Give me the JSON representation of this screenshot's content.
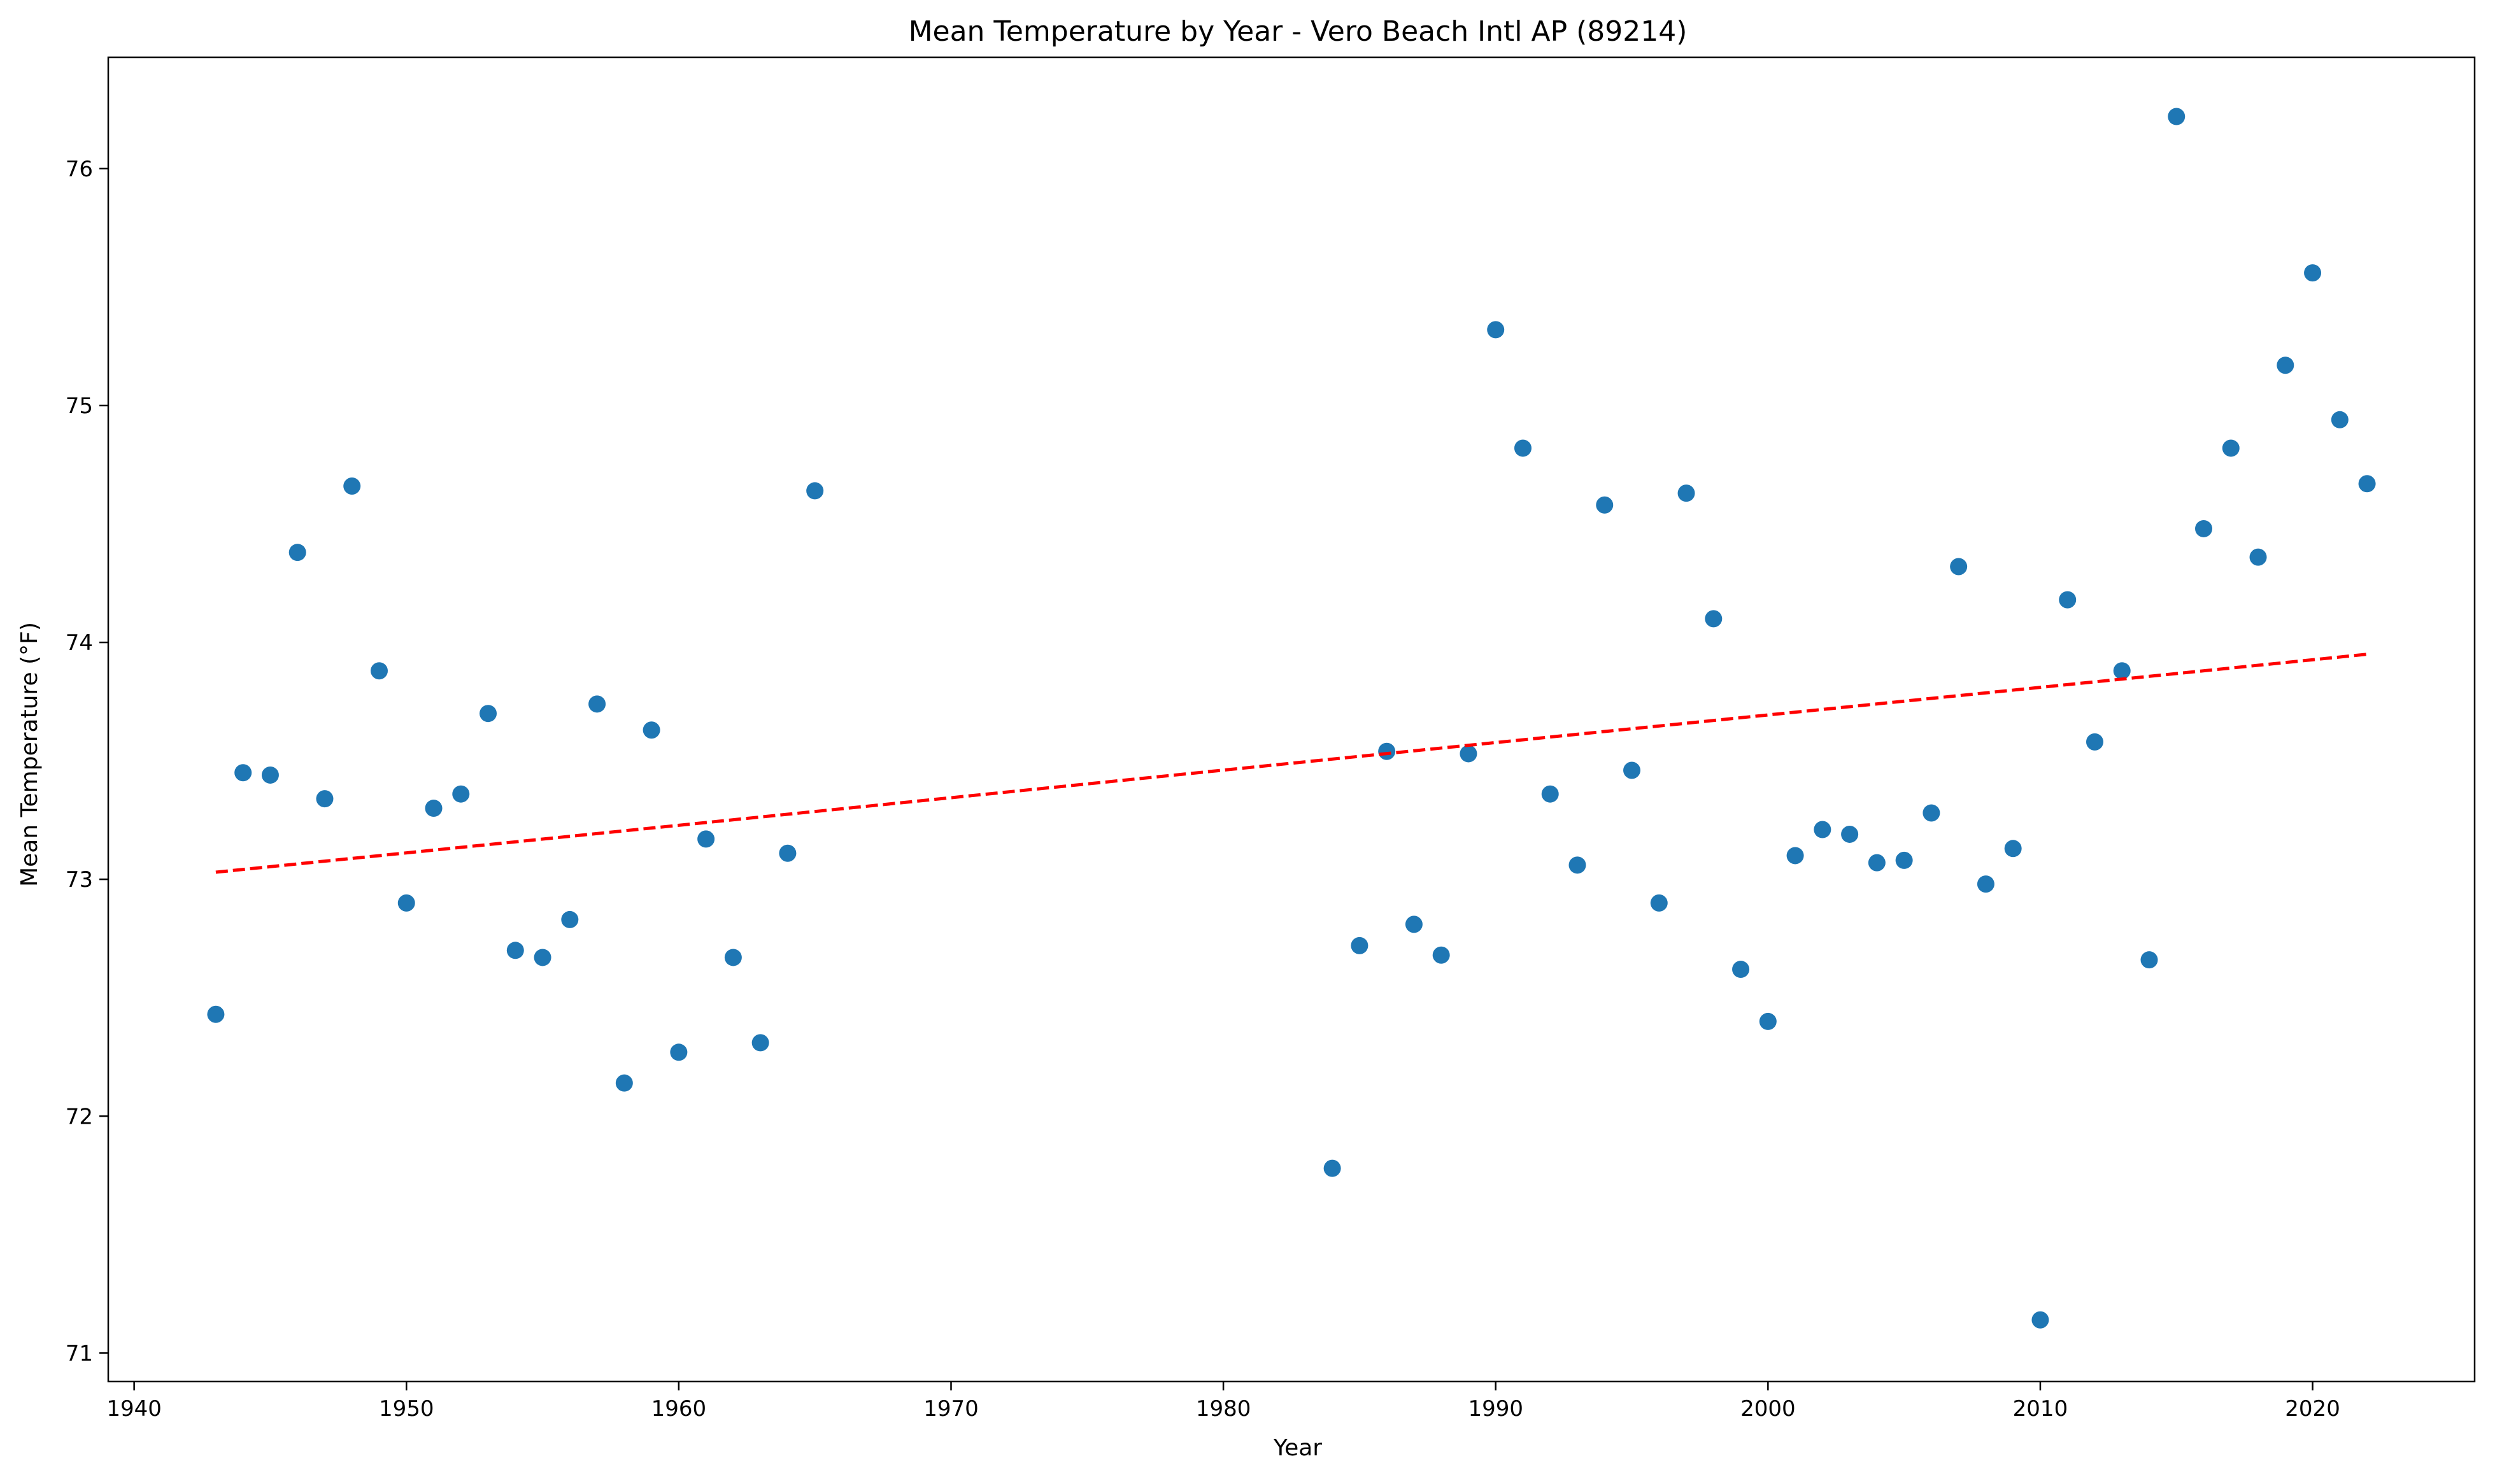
{
  "chart_data": {
    "type": "scatter",
    "title": "Mean Temperature by Year - Vero Beach Intl AP (89214)",
    "xlabel": "Year",
    "ylabel": "Mean Temperature (°F)",
    "xlim": [
      1939.05,
      2025.95
    ],
    "ylim": [
      70.88,
      76.47
    ],
    "xticks": [
      1940,
      1950,
      1960,
      1970,
      1980,
      1990,
      2000,
      2010,
      2020
    ],
    "yticks": [
      71,
      72,
      73,
      74,
      75,
      76
    ],
    "grid": false,
    "legend": "none",
    "colors": {
      "points": "#1f77b4",
      "trend": "#ff0000"
    },
    "series": [
      {
        "x": [
          1943,
          1944,
          1945,
          1946,
          1947,
          1948,
          1949,
          1950,
          1951,
          1952,
          1953,
          1954,
          1955,
          1956,
          1957,
          1958,
          1959,
          1960,
          1961,
          1962,
          1963,
          1964,
          1965,
          1984,
          1985,
          1986,
          1987,
          1988,
          1989,
          1990,
          1991,
          1992,
          1993,
          1994,
          1995,
          1996,
          1997,
          1998,
          1999,
          2000,
          2001,
          2002,
          2003,
          2004,
          2005,
          2006,
          2007,
          2008,
          2009,
          2010,
          2011,
          2012,
          2013,
          2014,
          2015,
          2016,
          2017,
          2018,
          2019,
          2020,
          2021,
          2022
        ],
        "y": [
          72.43,
          73.45,
          73.44,
          74.38,
          73.34,
          74.66,
          73.88,
          72.9,
          73.3,
          73.36,
          73.7,
          72.7,
          72.67,
          72.83,
          73.74,
          72.14,
          73.63,
          72.27,
          73.17,
          72.67,
          72.31,
          73.11,
          74.64,
          71.78,
          72.72,
          73.54,
          72.81,
          72.68,
          73.53,
          75.32,
          74.82,
          73.36,
          73.06,
          74.58,
          73.46,
          72.9,
          74.63,
          74.1,
          72.62,
          72.4,
          73.1,
          73.21,
          73.19,
          73.07,
          73.08,
          73.28,
          74.32,
          72.98,
          73.13,
          71.14,
          74.18,
          73.58,
          73.88,
          72.66,
          76.22,
          74.48,
          74.82,
          74.36,
          75.17,
          75.56,
          74.94,
          74.67
        ]
      }
    ],
    "trendline": {
      "style": "dashed",
      "x": [
        1943,
        2022
      ],
      "y": [
        73.03,
        73.95
      ]
    }
  }
}
